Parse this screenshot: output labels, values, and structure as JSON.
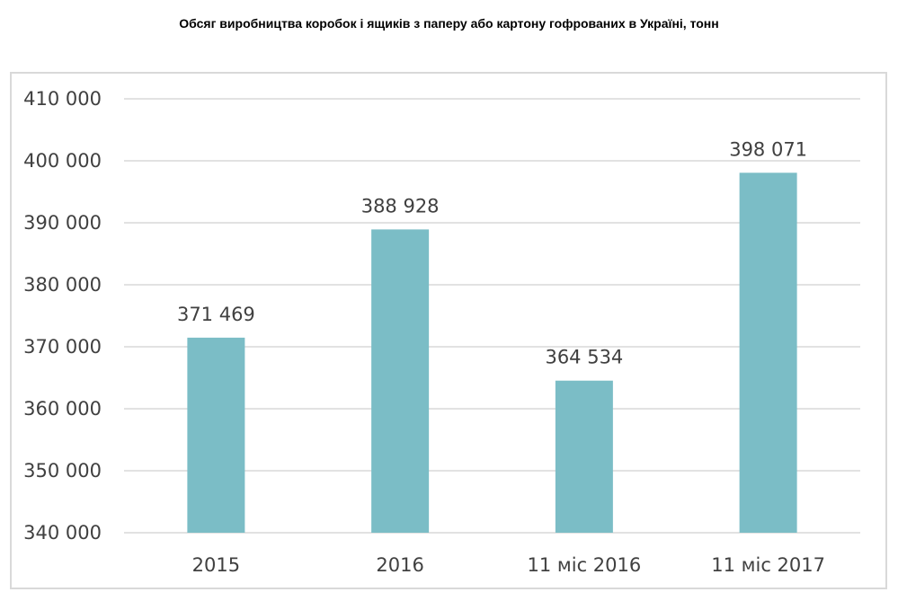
{
  "colors": {
    "bar": "#7bbdc6",
    "grid": "#d9d9d9",
    "text": "#404040",
    "frame": "#d9d9d9"
  },
  "chart_data": {
    "type": "bar",
    "title": "Обсяг виробництва коробок і ящиків з паперу або картону гофрованих в Україні, тонн",
    "categories": [
      "2015",
      "2016",
      "11 міс 2016",
      "11 міс 2017"
    ],
    "values": [
      371469,
      388928,
      364534,
      398071
    ],
    "value_labels": [
      "371 469",
      "388 928",
      "364 534",
      "398 071"
    ],
    "ylim": [
      340000,
      410000
    ],
    "yticks": [
      340000,
      350000,
      360000,
      370000,
      380000,
      390000,
      400000,
      410000
    ],
    "ytick_labels": [
      "340 000",
      "350 000",
      "360 000",
      "370 000",
      "380 000",
      "390 000",
      "400 000",
      "410 000"
    ],
    "xlabel": "",
    "ylabel": "",
    "grid": true,
    "legend": "none"
  }
}
